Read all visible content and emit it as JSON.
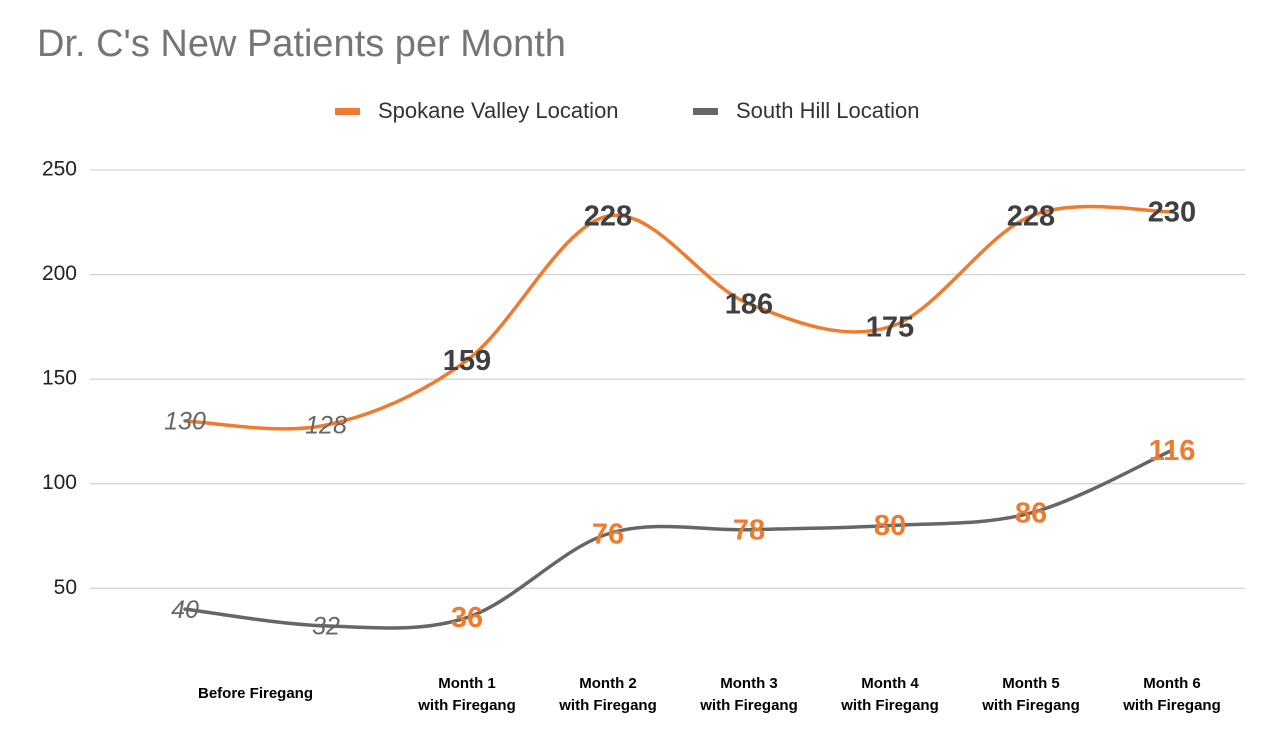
{
  "chart_data": {
    "type": "line",
    "title": "Dr. C's New Patients per Month",
    "categories": [
      "Before Firegang",
      null,
      "Month 1\nwith Firegang",
      "Month 2\nwith Firegang",
      "Month 3\nwith Firegang",
      "Month 4\nwith Firegang",
      "Month 5\nwith Firegang",
      "Month 6\nwith Firegang"
    ],
    "series": [
      {
        "name": "Spokane Valley Location",
        "color": "#ef7b2f",
        "label_color": "#404040",
        "values": [
          130,
          128,
          159,
          228,
          186,
          175,
          228,
          230
        ]
      },
      {
        "name": "South Hill Location",
        "color": "#666666",
        "label_color": "#ef7b2f",
        "values": [
          40,
          32,
          36,
          76,
          78,
          80,
          86,
          116
        ]
      }
    ],
    "ylim": [
      20,
      250
    ],
    "yticks": [
      50,
      100,
      150,
      200,
      250
    ],
    "grid": true,
    "smooth": true,
    "legend": "top"
  }
}
